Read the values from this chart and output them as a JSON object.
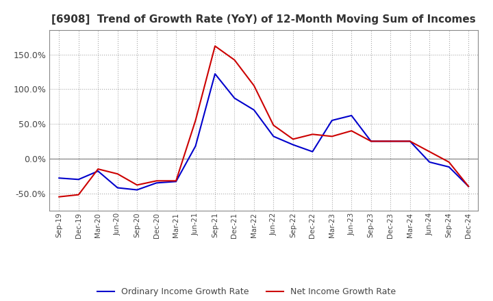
{
  "title": "[6908]  Trend of Growth Rate (YoY) of 12-Month Moving Sum of Incomes",
  "title_fontsize": 11,
  "ylim": [
    -75,
    185
  ],
  "yticks": [
    -50,
    0,
    50,
    100,
    150
  ],
  "legend_labels": [
    "Ordinary Income Growth Rate",
    "Net Income Growth Rate"
  ],
  "legend_colors": [
    "#0000cc",
    "#cc0000"
  ],
  "x_labels": [
    "Sep-19",
    "Dec-19",
    "Mar-20",
    "Jun-20",
    "Sep-20",
    "Dec-20",
    "Mar-21",
    "Jun-21",
    "Sep-21",
    "Dec-21",
    "Mar-22",
    "Jun-22",
    "Sep-22",
    "Dec-22",
    "Mar-23",
    "Jun-23",
    "Sep-23",
    "Dec-23",
    "Mar-24",
    "Jun-24",
    "Sep-24",
    "Dec-24"
  ],
  "ordinary_income": [
    -28,
    -30,
    -18,
    -42,
    -45,
    -35,
    -33,
    18,
    122,
    87,
    70,
    32,
    20,
    10,
    55,
    62,
    25,
    25,
    25,
    -5,
    -12,
    -40
  ],
  "net_income": [
    -55,
    -52,
    -15,
    -22,
    -38,
    -32,
    -32,
    55,
    162,
    142,
    105,
    48,
    28,
    35,
    32,
    40,
    25,
    25,
    25,
    10,
    -5,
    -40
  ],
  "background_color": "#ffffff",
  "grid_color": "#aaaaaa",
  "line_width": 1.5,
  "zero_line_color": "#888888"
}
